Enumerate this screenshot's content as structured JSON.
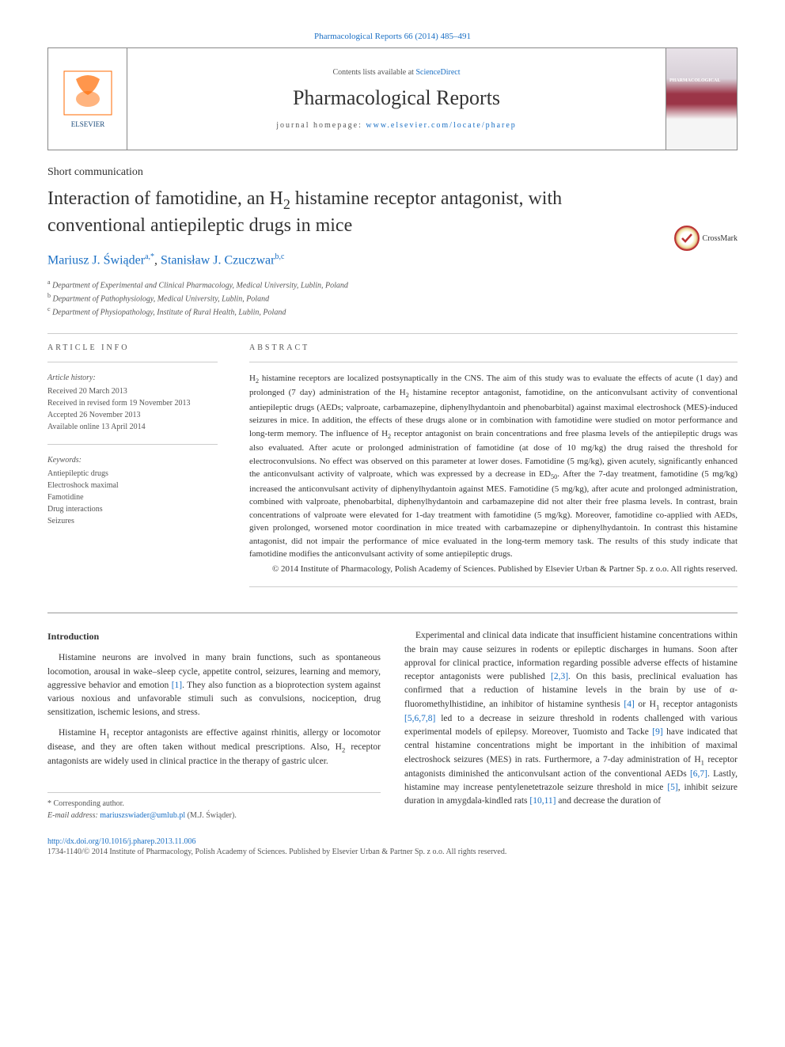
{
  "top_link_prefix": "Pharmacological Reports 66 (2014) 485–491",
  "header": {
    "contents_prefix": "Contents lists available at ",
    "contents_link": "ScienceDirect",
    "journal_name": "Pharmacological Reports",
    "homepage_prefix": "journal homepage: ",
    "homepage_url": "www.elsevier.com/locate/pharep",
    "cover_label": "PHARMACOLOGICAL"
  },
  "crossmark_label": "CrossMark",
  "section_type": "Short communication",
  "title_html": "Interaction of famotidine, an H<sub>2</sub> histamine receptor antagonist, with conventional antiepileptic drugs in mice",
  "authors": {
    "a1_name": "Mariusz J. Świąder",
    "a1_sup": "a,*",
    "a2_name": "Stanisław J. Czuczwar",
    "a2_sup": "b,c"
  },
  "affiliations": [
    {
      "sup": "a",
      "text": "Department of Experimental and Clinical Pharmacology, Medical University, Lublin, Poland"
    },
    {
      "sup": "b",
      "text": "Department of Pathophysiology, Medical University, Lublin, Poland"
    },
    {
      "sup": "c",
      "text": "Department of Physiopathology, Institute of Rural Health, Lublin, Poland"
    }
  ],
  "article_info": {
    "heading": "ARTICLE INFO",
    "history_label": "Article history:",
    "history": [
      "Received 20 March 2013",
      "Received in revised form 19 November 2013",
      "Accepted 26 November 2013",
      "Available online 13 April 2014"
    ],
    "keywords_label": "Keywords:",
    "keywords": [
      "Antiepileptic drugs",
      "Electroshock maximal",
      "Famotidine",
      "Drug interactions",
      "Seizures"
    ]
  },
  "abstract": {
    "heading": "ABSTRACT",
    "text_html": "H<sub>2</sub> histamine receptors are localized postsynaptically in the CNS. The aim of this study was to evaluate the effects of acute (1 day) and prolonged (7 day) administration of the H<sub>2</sub> histamine receptor antagonist, famotidine, on the anticonvulsant activity of conventional antiepileptic drugs (AEDs; valproate, carbamazepine, diphenylhydantoin and phenobarbital) against maximal electroshock (MES)-induced seizures in mice. In addition, the effects of these drugs alone or in combination with famotidine were studied on motor performance and long-term memory. The influence of H<sub>2</sub> receptor antagonist on brain concentrations and free plasma levels of the antiepileptic drugs was also evaluated. After acute or prolonged administration of famotidine (at dose of 10 mg/kg) the drug raised the threshold for electroconvulsions. No effect was observed on this parameter at lower doses. Famotidine (5 mg/kg), given acutely, significantly enhanced the anticonvulsant activity of valproate, which was expressed by a decrease in ED<sub>50</sub>. After the 7-day treatment, famotidine (5 mg/kg) increased the anticonvulsant activity of diphenylhydantoin against MES. Famotidine (5 mg/kg), after acute and prolonged administration, combined with valproate, phenobarbital, diphenylhydantoin and carbamazepine did not alter their free plasma levels. In contrast, brain concentrations of valproate were elevated for 1-day treatment with famotidine (5 mg/kg). Moreover, famotidine co-applied with AEDs, given prolonged, worsened motor coordination in mice treated with carbamazepine or diphenylhydantoin. In contrast this histamine antagonist, did not impair the performance of mice evaluated in the long-term memory task. The results of this study indicate that famotidine modifies the anticonvulsant activity of some antiepileptic drugs.",
    "copyright": "© 2014 Institute of Pharmacology, Polish Academy of Sciences. Published by Elsevier Urban & Partner Sp. z o.o. All rights reserved."
  },
  "body": {
    "intro_heading": "Introduction",
    "left_col": {
      "p1_html": "Histamine neurons are involved in many brain functions, such as spontaneous locomotion, arousal in wake–sleep cycle, appetite control, seizures, learning and memory, aggressive behavior and emotion <a href='#'>[1]</a>. They also function as a bioprotection system against various noxious and unfavorable stimuli such as convulsions, nociception, drug sensitization, ischemic lesions, and stress.",
      "p2_html": "Histamine H<sub>1</sub> receptor antagonists are effective against rhinitis, allergy or locomotor disease, and they are often taken without medical prescriptions. Also, H<sub>2</sub> receptor antagonists are widely used in clinical practice in the therapy of gastric ulcer."
    },
    "right_col": {
      "p1_html": "Experimental and clinical data indicate that insufficient histamine concentrations within the brain may cause seizures in rodents or epileptic discharges in humans. Soon after approval for clinical practice, information regarding possible adverse effects of histamine receptor antagonists were published <a href='#'>[2,3]</a>. On this basis, preclinical evaluation has confirmed that a reduction of histamine levels in the brain by use of α-fluoromethylhistidine, an inhibitor of histamine synthesis <a href='#'>[4]</a> or H<sub>1</sub> receptor antagonists <a href='#'>[5,6,7,8]</a> led to a decrease in seizure threshold in rodents challenged with various experimental models of epilepsy. Moreover, Tuomisto and Tacke <a href='#'>[9]</a> have indicated that central histamine concentrations might be important in the inhibition of maximal electroshock seizures (MES) in rats. Furthermore, a 7-day administration of H<sub>1</sub> receptor antagonists diminished the anticonvulsant action of the conventional AEDs <a href='#'>[6,7]</a>. Lastly, histamine may increase pentylenetetrazole seizure threshold in mice <a href='#'>[5]</a>, inhibit seizure duration in amygdala-kindled rats <a href='#'>[10,11]</a> and decrease the duration of"
    }
  },
  "corresponding": {
    "label": "* Corresponding author.",
    "email_label": "E-mail address: ",
    "email": "mariuszswiader@umlub.pl",
    "email_suffix": " (M.J. Świąder)."
  },
  "doi": "http://dx.doi.org/10.1016/j.pharep.2013.11.006",
  "issn_line": "1734-1140/© 2014 Institute of Pharmacology, Polish Academy of Sciences. Published by Elsevier Urban & Partner Sp. z o.o. All rights reserved.",
  "colors": {
    "link": "#1a6fc4",
    "text": "#333333",
    "muted": "#555555",
    "rule": "#cccccc",
    "elsevier_orange": "#ff6a00",
    "elsevier_text": "#1a4a7a",
    "cover_band": "#9b3547"
  }
}
